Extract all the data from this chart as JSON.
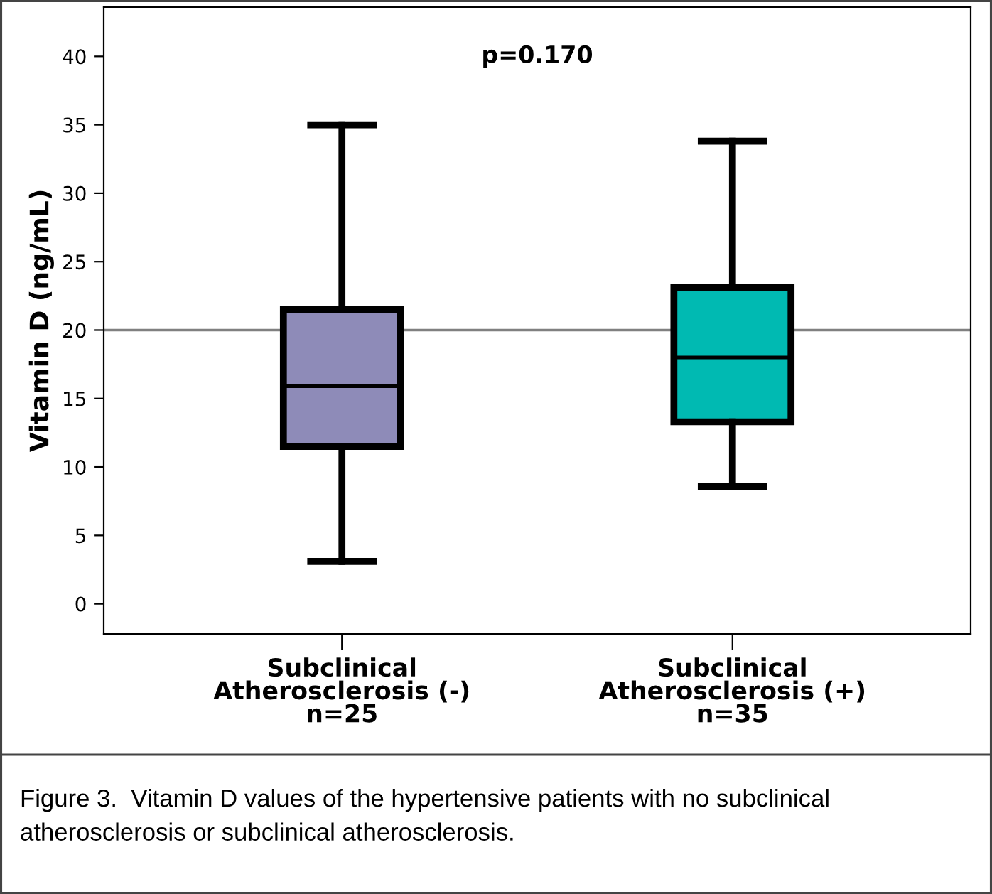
{
  "chart_data": {
    "type": "box",
    "ylabel": "Vitamin D (ng/mL)",
    "categories": [
      "Subclinical\nAtherosclerosis (-)\nn=25",
      "Subclinical\nAtherosclerosis (+)\nn=35"
    ],
    "colors": [
      "#8e8bb8",
      "#00bab2"
    ],
    "boxes": [
      {
        "low": 3.1,
        "q1": 11.5,
        "median": 15.9,
        "q3": 21.5,
        "high": 35
      },
      {
        "low": 8.6,
        "q1": 13.3,
        "median": 18.0,
        "q3": 23.1,
        "high": 33.8
      }
    ],
    "ylim": [
      -2.2,
      43.6
    ],
    "yticks": [
      0,
      5,
      10,
      15,
      20,
      25,
      30,
      35,
      40
    ],
    "ref_lines": [
      {
        "axis": "y",
        "value": 20,
        "color": "#808080"
      }
    ],
    "annotations": [
      "p=0.170",
      "Figure 3.  Vitamin D values of the hypertensive patients with no subclinical atherosclerosis or subclinical atherosclerosis."
    ],
    "grid": false,
    "legend": false
  }
}
